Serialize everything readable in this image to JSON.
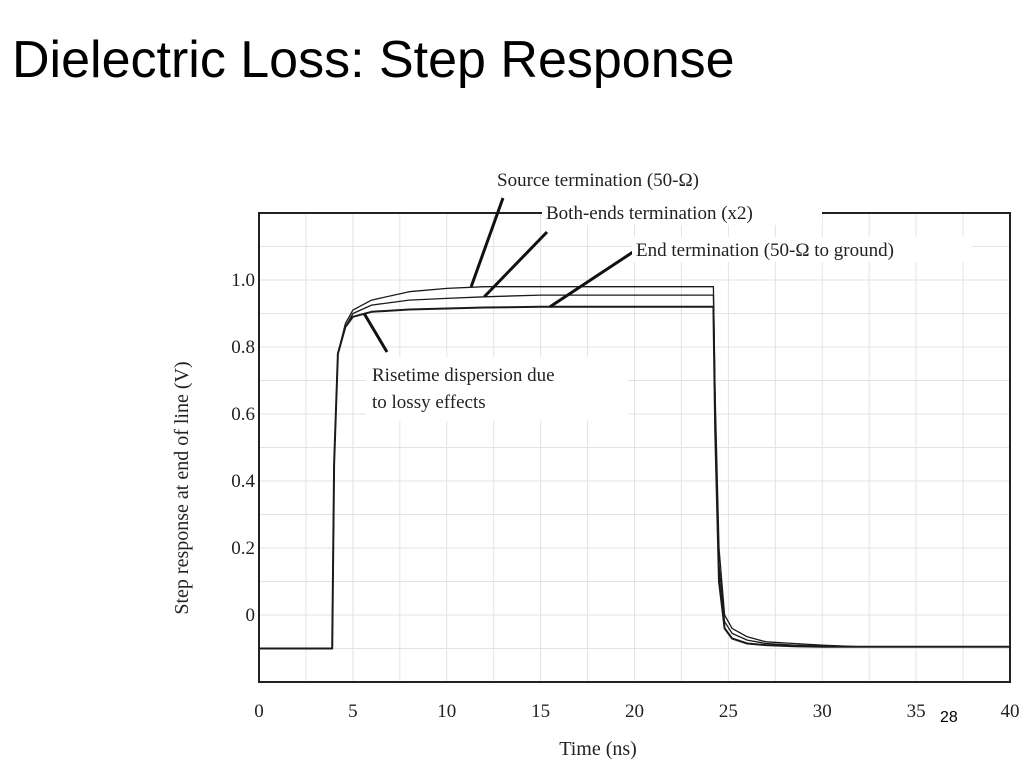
{
  "slide": {
    "title": "Dielectric Loss: Step Response",
    "page_number": "28"
  },
  "chart_data": {
    "type": "line",
    "xlabel": "Time (ns)",
    "ylabel": "Step response at end of line (V)",
    "xlim": [
      0,
      40
    ],
    "ylim": [
      -0.2,
      1.2
    ],
    "x_ticks": [
      0,
      5,
      10,
      15,
      20,
      25,
      30,
      35,
      40
    ],
    "x_tick_labels": [
      "0",
      "5",
      "10",
      "15",
      "20",
      "25",
      "30",
      "35",
      "40"
    ],
    "y_ticks": [
      0,
      0.2,
      0.4,
      0.6,
      0.8,
      1.0
    ],
    "y_tick_labels": [
      "0",
      "0.2",
      "0.4",
      "0.6",
      "0.8",
      "1.0"
    ],
    "grid": true,
    "series": [
      {
        "x": [
          0,
          3.9,
          4.0,
          4.2,
          4.6,
          5.0,
          6.0,
          8.0,
          10.0,
          12.0,
          15.0,
          20.0,
          24.2,
          24.3,
          24.5,
          24.8,
          25.2,
          26.0,
          27.0,
          28.5,
          30.0,
          32.0,
          40.0
        ],
        "y": [
          -0.1,
          -0.1,
          0.45,
          0.78,
          0.87,
          0.91,
          0.94,
          0.965,
          0.975,
          0.98,
          0.98,
          0.98,
          0.98,
          0.65,
          0.2,
          0.0,
          -0.04,
          -0.065,
          -0.08,
          -0.085,
          -0.09,
          -0.095,
          -0.095
        ]
      },
      {
        "x": [
          0,
          3.9,
          4.0,
          4.2,
          4.6,
          5.0,
          6.0,
          8.0,
          10.0,
          12.0,
          15.0,
          20.0,
          24.2,
          24.3,
          24.5,
          24.8,
          25.2,
          26.0,
          27.0,
          28.5,
          30.0,
          32.0,
          40.0
        ],
        "y": [
          -0.1,
          -0.1,
          0.45,
          0.78,
          0.86,
          0.9,
          0.925,
          0.94,
          0.945,
          0.95,
          0.955,
          0.955,
          0.955,
          0.6,
          0.15,
          -0.02,
          -0.055,
          -0.075,
          -0.085,
          -0.09,
          -0.092,
          -0.095,
          -0.095
        ]
      },
      {
        "x": [
          0,
          3.9,
          4.0,
          4.2,
          4.6,
          5.0,
          6.0,
          8.0,
          10.0,
          12.0,
          15.0,
          20.0,
          24.2,
          24.3,
          24.5,
          24.8,
          25.2,
          26.0,
          27.0,
          28.5,
          30.0,
          32.0,
          40.0
        ],
        "y": [
          -0.1,
          -0.1,
          0.45,
          0.78,
          0.86,
          0.89,
          0.905,
          0.912,
          0.915,
          0.918,
          0.92,
          0.92,
          0.92,
          0.55,
          0.1,
          -0.04,
          -0.07,
          -0.085,
          -0.09,
          -0.093,
          -0.095,
          -0.095,
          -0.095
        ]
      }
    ],
    "annotations": [
      {
        "text": "Source termination (50-Ω)",
        "x": 11.3,
        "y": 0.98
      },
      {
        "text": "Both-ends termination (x2)",
        "x": 12.0,
        "y": 0.95
      },
      {
        "text": "End termination (50-Ω to ground)",
        "x": 15.5,
        "y": 0.92
      },
      {
        "lines": [
          "Risetime dispersion due",
          "to lossy effects"
        ],
        "x": 5.6,
        "y": 0.9
      }
    ]
  }
}
